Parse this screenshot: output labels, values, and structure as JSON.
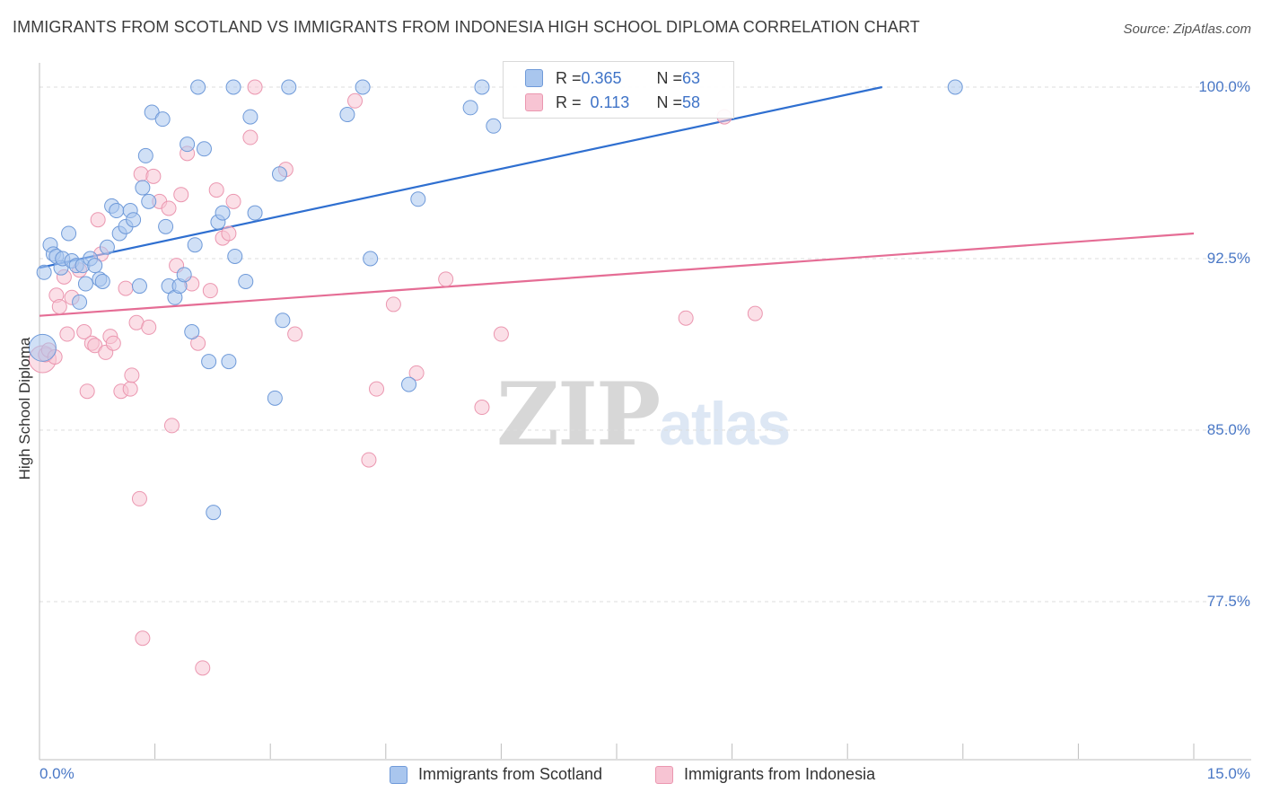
{
  "title": "IMMIGRANTS FROM SCOTLAND VS IMMIGRANTS FROM INDONESIA HIGH SCHOOL DIPLOMA CORRELATION CHART",
  "source": "Source: ZipAtlas.com",
  "watermark": {
    "zip": "ZIP",
    "atlas": "atlas"
  },
  "legend_top": {
    "rows": [
      {
        "r_label": "R = ",
        "r_value": "0.365",
        "n_label": "N = ",
        "n_value": "63"
      },
      {
        "r_label": "R = ",
        "r_value": "0.113",
        "n_label": "N = ",
        "n_value": "58"
      }
    ]
  },
  "colors": {
    "scotland_fill": "#a9c6ee",
    "scotland_stroke": "#6f9ad9",
    "scotland_line": "#2f6fd0",
    "indonesia_fill": "#f7c4d3",
    "indonesia_stroke": "#eb97b0",
    "indonesia_line": "#e56d95",
    "tick_text": "#4a78c6"
  },
  "chart_data": {
    "type": "scatter",
    "title": "IMMIGRANTS FROM SCOTLAND VS IMMIGRANTS FROM INDONESIA HIGH SCHOOL DIPLOMA CORRELATION CHART",
    "xlabel": "",
    "ylabel": "High School Diploma",
    "xlim": [
      0,
      15
    ],
    "ylim": [
      70,
      100.3
    ],
    "x_tick_labels": [
      "0.0%",
      "15.0%"
    ],
    "y_tick_labels": [
      "100.0%",
      "92.5%",
      "85.0%",
      "77.5%"
    ],
    "y_ticks": [
      100,
      92.5,
      85,
      77.5
    ],
    "grid": true,
    "legend_position": "top-center",
    "series": [
      {
        "name": "Immigrants from Scotland",
        "r": 0.365,
        "n": 63,
        "trend": {
          "x": [
            0,
            10.95
          ],
          "y": [
            92.1,
            100.0
          ]
        },
        "points": [
          [
            0.04,
            88.6
          ],
          [
            0.14,
            93.1
          ],
          [
            0.18,
            92.7
          ],
          [
            0.22,
            92.6
          ],
          [
            0.28,
            92.1
          ],
          [
            0.3,
            92.5
          ],
          [
            0.38,
            93.6
          ],
          [
            0.42,
            92.4
          ],
          [
            0.48,
            92.2
          ],
          [
            0.52,
            90.6
          ],
          [
            0.56,
            92.2
          ],
          [
            0.6,
            91.4
          ],
          [
            0.66,
            92.5
          ],
          [
            0.72,
            92.2
          ],
          [
            0.78,
            91.6
          ],
          [
            0.82,
            91.5
          ],
          [
            0.88,
            93.0
          ],
          [
            0.94,
            94.8
          ],
          [
            1.0,
            94.6
          ],
          [
            1.04,
            93.6
          ],
          [
            1.12,
            93.9
          ],
          [
            1.18,
            94.6
          ],
          [
            1.22,
            94.2
          ],
          [
            1.3,
            91.3
          ],
          [
            1.34,
            95.6
          ],
          [
            1.38,
            97.0
          ],
          [
            1.42,
            95.0
          ],
          [
            1.46,
            98.9
          ],
          [
            1.6,
            98.6
          ],
          [
            1.64,
            93.9
          ],
          [
            1.68,
            91.3
          ],
          [
            1.76,
            90.8
          ],
          [
            1.82,
            91.3
          ],
          [
            1.88,
            91.8
          ],
          [
            1.92,
            97.5
          ],
          [
            1.98,
            89.3
          ],
          [
            2.02,
            93.1
          ],
          [
            2.06,
            100.0
          ],
          [
            2.14,
            97.3
          ],
          [
            2.2,
            88.0
          ],
          [
            2.26,
            81.4
          ],
          [
            2.32,
            94.1
          ],
          [
            2.38,
            94.5
          ],
          [
            2.46,
            88.0
          ],
          [
            2.52,
            100.0
          ],
          [
            2.54,
            92.6
          ],
          [
            2.68,
            91.5
          ],
          [
            2.74,
            98.7
          ],
          [
            2.8,
            94.5
          ],
          [
            3.06,
            86.4
          ],
          [
            3.12,
            96.2
          ],
          [
            3.16,
            89.8
          ],
          [
            3.24,
            100.0
          ],
          [
            4.0,
            98.8
          ],
          [
            4.2,
            100.0
          ],
          [
            4.3,
            92.5
          ],
          [
            4.8,
            87.0
          ],
          [
            4.92,
            95.1
          ],
          [
            5.6,
            99.1
          ],
          [
            5.75,
            100.0
          ],
          [
            5.9,
            98.3
          ],
          [
            11.9,
            100.0
          ],
          [
            0.06,
            91.9
          ]
        ]
      },
      {
        "name": "Immigrants from Indonesia",
        "r": 0.113,
        "n": 58,
        "trend": {
          "x": [
            0,
            15
          ],
          "y": [
            90.0,
            93.6
          ]
        },
        "points": [
          [
            0.04,
            88.1
          ],
          [
            0.08,
            88.3
          ],
          [
            0.12,
            88.5
          ],
          [
            0.2,
            88.2
          ],
          [
            0.22,
            90.9
          ],
          [
            0.26,
            90.4
          ],
          [
            0.32,
            91.7
          ],
          [
            0.36,
            89.2
          ],
          [
            0.42,
            90.8
          ],
          [
            0.52,
            92.0
          ],
          [
            0.58,
            89.3
          ],
          [
            0.62,
            86.7
          ],
          [
            0.68,
            88.8
          ],
          [
            0.72,
            88.7
          ],
          [
            0.76,
            94.2
          ],
          [
            0.8,
            92.7
          ],
          [
            0.86,
            88.4
          ],
          [
            0.92,
            89.1
          ],
          [
            0.96,
            88.8
          ],
          [
            1.06,
            86.7
          ],
          [
            1.12,
            91.2
          ],
          [
            1.18,
            86.8
          ],
          [
            1.2,
            87.4
          ],
          [
            1.26,
            89.7
          ],
          [
            1.3,
            82.0
          ],
          [
            1.32,
            96.2
          ],
          [
            1.34,
            75.9
          ],
          [
            1.42,
            89.5
          ],
          [
            1.48,
            96.1
          ],
          [
            1.56,
            95.0
          ],
          [
            1.68,
            94.7
          ],
          [
            1.72,
            85.2
          ],
          [
            1.78,
            92.2
          ],
          [
            1.84,
            95.3
          ],
          [
            1.92,
            97.1
          ],
          [
            1.98,
            91.4
          ],
          [
            2.06,
            88.8
          ],
          [
            2.12,
            74.6
          ],
          [
            2.22,
            91.1
          ],
          [
            2.3,
            95.5
          ],
          [
            2.38,
            93.4
          ],
          [
            2.46,
            93.6
          ],
          [
            2.52,
            95.0
          ],
          [
            2.74,
            97.8
          ],
          [
            2.8,
            100.0
          ],
          [
            3.2,
            96.4
          ],
          [
            3.32,
            89.2
          ],
          [
            4.1,
            99.4
          ],
          [
            4.28,
            83.7
          ],
          [
            4.38,
            86.8
          ],
          [
            4.6,
            90.5
          ],
          [
            4.9,
            87.5
          ],
          [
            5.28,
            91.6
          ],
          [
            5.75,
            86.0
          ],
          [
            6.0,
            89.2
          ],
          [
            8.4,
            89.9
          ],
          [
            9.3,
            90.1
          ],
          [
            8.9,
            98.7
          ]
        ]
      }
    ]
  },
  "legend_bottom": [
    "Immigrants from Scotland",
    "Immigrants from Indonesia"
  ]
}
